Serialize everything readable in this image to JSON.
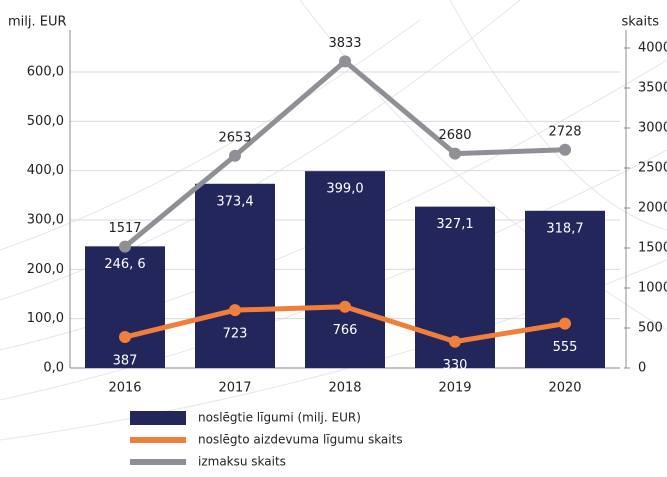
{
  "chart_data": {
    "type": "bar",
    "ylabel": "milj. EUR",
    "y2label": "skaits",
    "categories": [
      "2016",
      "2017",
      "2018",
      "2019",
      "2020"
    ],
    "series": [
      {
        "name": "noslēgtie līgumi (milj. EUR)",
        "type": "bar",
        "color": "#23265a",
        "axis": "y",
        "values": [
          246.6,
          373.4,
          399.0,
          327.1,
          318.7
        ],
        "value_labels": [
          "246, 6",
          "373,4",
          "399,0",
          "327,1",
          "318,7"
        ]
      },
      {
        "name": "noslēgto aizdevuma līgumu skaits",
        "type": "line",
        "color": "#f07f3c",
        "axis": "y2",
        "values": [
          387,
          723,
          766,
          330,
          555
        ]
      },
      {
        "name": "izmaksu skaits",
        "type": "line",
        "color": "#8e9095",
        "axis": "y2",
        "values": [
          1517,
          2653,
          3833,
          2680,
          2728
        ]
      }
    ],
    "ylim": [
      0,
      600
    ],
    "yticks": [
      {
        "value": 0,
        "label": "0,0"
      },
      {
        "value": 100,
        "label": "100,0"
      },
      {
        "value": 200,
        "label": "200,0"
      },
      {
        "value": 300,
        "label": "300,0"
      },
      {
        "value": 400,
        "label": "400,0"
      },
      {
        "value": 500,
        "label": "500,0"
      },
      {
        "value": 600,
        "label": "600,0"
      }
    ],
    "y2lim": [
      0,
      4000
    ],
    "y2ticks": [
      0,
      500,
      1000,
      1500,
      2000,
      2500,
      3000,
      3500,
      4000
    ],
    "grid": true
  }
}
